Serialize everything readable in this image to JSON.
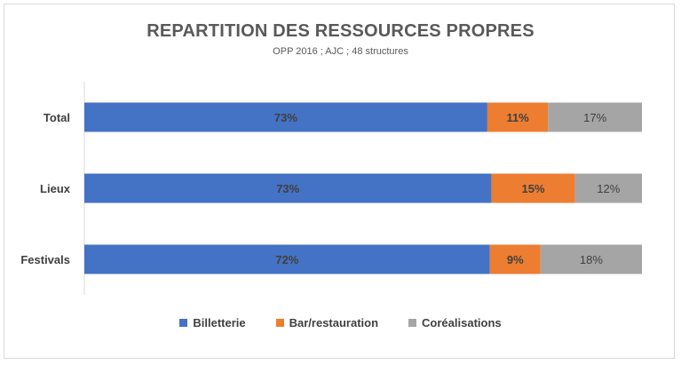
{
  "chart_data": {
    "type": "bar",
    "orientation": "horizontal",
    "stacked": "percent",
    "title": "REPARTITION DES RESSOURCES PROPRES",
    "subtitle": "OPP 2016 ; AJC ; 48 structures",
    "categories": [
      "Total",
      "Lieux",
      "Festivals"
    ],
    "series": [
      {
        "name": "Billetterie",
        "values": [
          73,
          73,
          72
        ],
        "labels": [
          "73%",
          "73%",
          "72%"
        ],
        "color": "#4472c4"
      },
      {
        "name": "Bar/restauration",
        "values": [
          11,
          15,
          9
        ],
        "labels": [
          "11%",
          "15%",
          "9%"
        ],
        "color": "#ed7d31"
      },
      {
        "name": "Coréalisations",
        "values": [
          17,
          12,
          18
        ],
        "labels": [
          "17%",
          "12%",
          "18%"
        ],
        "color": "#a5a5a5"
      }
    ],
    "legend_position": "bottom",
    "grid": false
  }
}
